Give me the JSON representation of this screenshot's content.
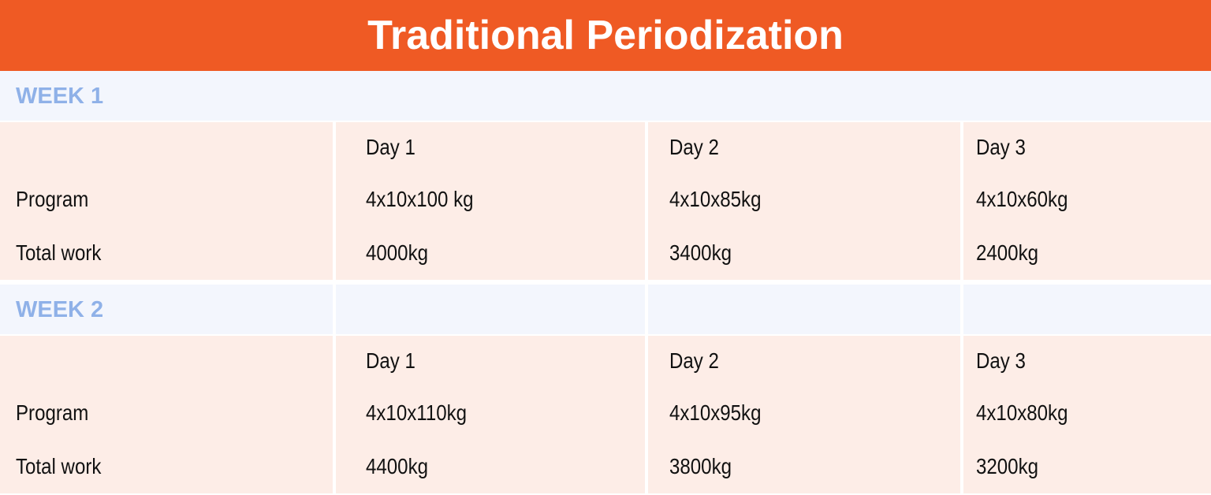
{
  "header": {
    "title": "Traditional Periodization"
  },
  "weeks": [
    {
      "label": "WEEK 1",
      "days": [
        "Day 1",
        "Day 2",
        "Day 3"
      ],
      "rows": [
        {
          "label": "Program",
          "cells": [
            "4x10x100 kg",
            "4x10x85kg",
            "4x10x60kg"
          ]
        },
        {
          "label": "Total work",
          "cells": [
            "4000kg",
            "3400kg",
            "2400kg"
          ]
        }
      ]
    },
    {
      "label": "WEEK 2",
      "days": [
        "Day 1",
        "Day 2",
        "Day 3"
      ],
      "rows": [
        {
          "label": "Program",
          "cells": [
            "4x10x110kg",
            "4x10x95kg",
            "4x10x80kg"
          ]
        },
        {
          "label": "Total work",
          "cells": [
            "4400kg",
            "3800kg",
            "3200kg"
          ]
        }
      ]
    }
  ]
}
